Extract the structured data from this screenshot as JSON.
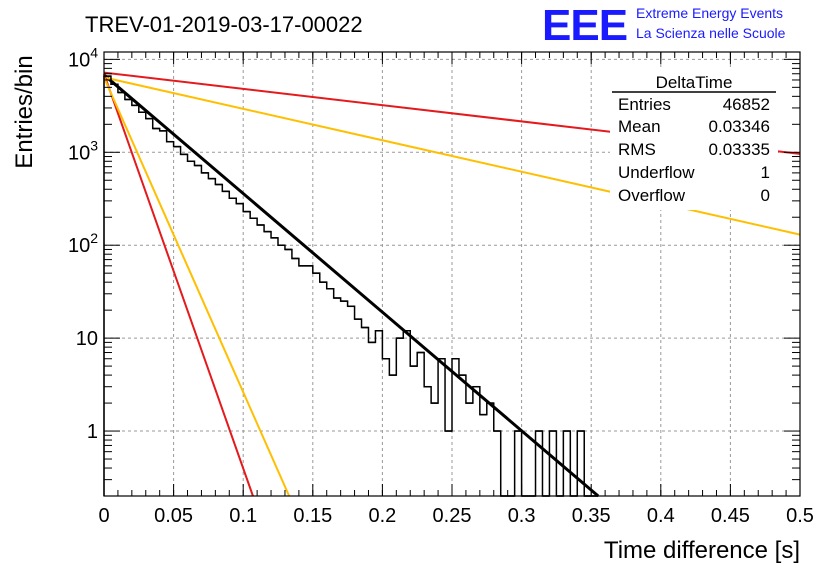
{
  "header": {
    "run_title": "TREV-01-2019-03-17-00022",
    "logo_text": "EEE",
    "logo_line1": "Extreme Energy Events",
    "logo_line2": "La Scienza nelle Scuole"
  },
  "stats_box": {
    "title": "DeltaTime",
    "rows": [
      {
        "label": "Entries",
        "value": "46852"
      },
      {
        "label": "Mean",
        "value": "0.03346"
      },
      {
        "label": "RMS",
        "value": "0.03335"
      },
      {
        "label": "Underflow",
        "value": "1"
      },
      {
        "label": "Overflow",
        "value": "0"
      }
    ]
  },
  "chart_data": {
    "type": "line",
    "title": "TREV-01-2019-03-17-00022",
    "xlabel": "Time difference [s]",
    "ylabel": "Entries/bin",
    "xlim": [
      0,
      0.5
    ],
    "ylim": [
      0.2,
      12000
    ],
    "yscale": "log",
    "grid": true,
    "x_ticks": [
      0,
      0.05,
      0.1,
      0.15,
      0.2,
      0.25,
      0.3,
      0.35,
      0.4,
      0.45,
      0.5
    ],
    "x_tick_labels": [
      "0",
      "0.05",
      "0.1",
      "0.15",
      "0.2",
      "0.25",
      "0.3",
      "0.35",
      "0.4",
      "0.45",
      "0.5"
    ],
    "y_ticks": [
      1,
      10,
      100,
      1000,
      10000
    ],
    "y_tick_labels": [
      "1",
      "10",
      "10^2",
      "10^3",
      "10^4"
    ],
    "histogram": {
      "name": "DeltaTime",
      "color": "#000000",
      "bin_width": 0.005,
      "x_start": 0,
      "counts": [
        6600,
        5400,
        4400,
        3700,
        3200,
        2700,
        2300,
        1800,
        1700,
        1300,
        1150,
        950,
        800,
        720,
        600,
        520,
        450,
        380,
        320,
        280,
        230,
        195,
        165,
        140,
        120,
        100,
        90,
        72,
        60,
        60,
        50,
        40,
        34,
        27,
        25,
        22,
        16,
        13,
        9,
        12,
        6,
        4,
        10,
        12,
        5,
        7,
        3,
        2,
        6,
        1,
        6,
        4,
        2,
        3,
        1.5,
        2,
        1,
        0,
        0,
        1,
        0,
        0,
        1,
        0,
        1,
        0,
        1,
        0,
        1,
        0,
        0
      ]
    },
    "series": [
      {
        "color": "#000000",
        "points": [
          [
            0,
            6800
          ],
          [
            0.355,
            0.2
          ]
        ]
      },
      {
        "color": "#e41a1c",
        "points": [
          [
            0,
            7200
          ],
          [
            0.5,
            960
          ]
        ]
      },
      {
        "color": "#ffbf00",
        "points": [
          [
            0,
            6400
          ],
          [
            0.5,
            130
          ]
        ]
      },
      {
        "color": "#e41a1c",
        "points": [
          [
            0,
            7000
          ],
          [
            0.107,
            0.2
          ]
        ]
      },
      {
        "color": "#ffbf00",
        "points": [
          [
            0,
            6400
          ],
          [
            0.133,
            0.2
          ]
        ]
      }
    ]
  }
}
